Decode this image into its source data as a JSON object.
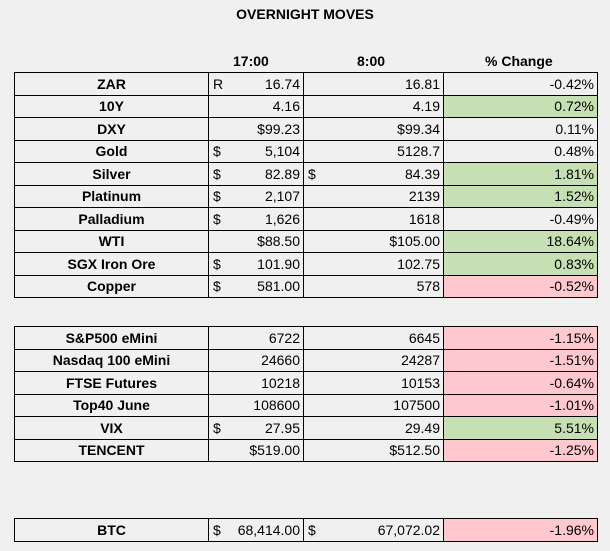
{
  "title": "OVERNIGHT MOVES",
  "headers": {
    "t17": "17:00",
    "t8": "8:00",
    "pct": "% Change"
  },
  "colors": {
    "up": "#c6e0b4",
    "down": "#ffc7ce"
  },
  "commodities": [
    {
      "name": "ZAR",
      "c17": "R",
      "v17": "16.74",
      "c8": "",
      "v8": "16.81",
      "pct": "-0.42%",
      "hl": ""
    },
    {
      "name": "10Y",
      "c17": "",
      "v17": "4.16",
      "c8": "",
      "v8": "4.19",
      "pct": "0.72%",
      "hl": "up"
    },
    {
      "name": "DXY",
      "c17": "",
      "v17": "$99.23",
      "c8": "",
      "v8": "$99.34",
      "pct": "0.11%",
      "hl": ""
    },
    {
      "name": "Gold",
      "c17": "$",
      "v17": "5,104",
      "c8": "",
      "v8": "5128.7",
      "pct": "0.48%",
      "hl": ""
    },
    {
      "name": "Silver",
      "c17": "$",
      "v17": "82.89",
      "c8": "$",
      "v8": "84.39",
      "pct": "1.81%",
      "hl": "up"
    },
    {
      "name": "Platinum",
      "c17": "$",
      "v17": "2,107",
      "c8": "",
      "v8": "2139",
      "pct": "1.52%",
      "hl": "up"
    },
    {
      "name": "Palladium",
      "c17": "$",
      "v17": "1,626",
      "c8": "",
      "v8": "1618",
      "pct": "-0.49%",
      "hl": ""
    },
    {
      "name": "WTI",
      "c17": "",
      "v17": "$88.50",
      "c8": "",
      "v8": "$105.00",
      "pct": "18.64%",
      "hl": "up"
    },
    {
      "name": "SGX Iron Ore",
      "c17": "$",
      "v17": "101.90",
      "c8": "",
      "v8": "102.75",
      "pct": "0.83%",
      "hl": "up"
    },
    {
      "name": "Copper",
      "c17": "$",
      "v17": "581.00",
      "c8": "",
      "v8": "578",
      "pct": "-0.52%",
      "hl": "down"
    }
  ],
  "indices": [
    {
      "name": "S&P500 eMini",
      "c17": "",
      "v17": "6722",
      "c8": "",
      "v8": "6645",
      "pct": "-1.15%",
      "hl": "down"
    },
    {
      "name": "Nasdaq 100 eMini",
      "c17": "",
      "v17": "24660",
      "c8": "",
      "v8": "24287",
      "pct": "-1.51%",
      "hl": "down"
    },
    {
      "name": "FTSE Futures",
      "c17": "",
      "v17": "10218",
      "c8": "",
      "v8": "10153",
      "pct": "-0.64%",
      "hl": "down"
    },
    {
      "name": "Top40 June",
      "c17": "",
      "v17": "108600",
      "c8": "",
      "v8": "107500",
      "pct": "-1.01%",
      "hl": "down"
    },
    {
      "name": "VIX",
      "c17": "$",
      "v17": "27.95",
      "c8": "",
      "v8": "29.49",
      "pct": "5.51%",
      "hl": "up"
    },
    {
      "name": "TENCENT",
      "c17": "",
      "v17": "$519.00",
      "c8": "",
      "v8": "$512.50",
      "pct": "-1.25%",
      "hl": "down"
    }
  ],
  "crypto": [
    {
      "name": "BTC",
      "c17": "$",
      "v17": "68,414.00",
      "c8": "$",
      "v8": "67,072.02",
      "pct": "-1.96%",
      "hl": "down"
    }
  ]
}
